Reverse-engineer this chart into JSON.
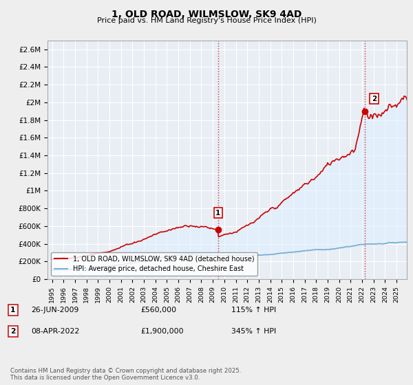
{
  "title": "1, OLD ROAD, WILMSLOW, SK9 4AD",
  "subtitle": "Price paid vs. HM Land Registry's House Price Index (HPI)",
  "ylim": [
    0,
    2700000
  ],
  "yticks": [
    0,
    200000,
    400000,
    600000,
    800000,
    1000000,
    1200000,
    1400000,
    1600000,
    1800000,
    2000000,
    2200000,
    2400000,
    2600000
  ],
  "x_start_year": 1995,
  "x_end_year": 2025,
  "line1_color": "#cc0000",
  "line2_color": "#7aafd4",
  "fill_color": "#ddeeff",
  "line1_label": "1, OLD ROAD, WILMSLOW, SK9 4AD (detached house)",
  "line2_label": "HPI: Average price, detached house, Cheshire East",
  "marker1_x": 2009.458,
  "marker1_value": 560000,
  "marker2_x": 2022.25,
  "marker2_value": 1900000,
  "annotation1_date": "26-JUN-2009",
  "annotation1_price": "£560,000",
  "annotation1_hpi": "115% ↑ HPI",
  "annotation2_date": "08-APR-2022",
  "annotation2_price": "£1,900,000",
  "annotation2_hpi": "345% ↑ HPI",
  "footnote": "Contains HM Land Registry data © Crown copyright and database right 2025.\nThis data is licensed under the Open Government Licence v3.0.",
  "bg_color": "#eeeeee",
  "plot_bg_color": "#e8eef4",
  "grid_color": "#ffffff"
}
